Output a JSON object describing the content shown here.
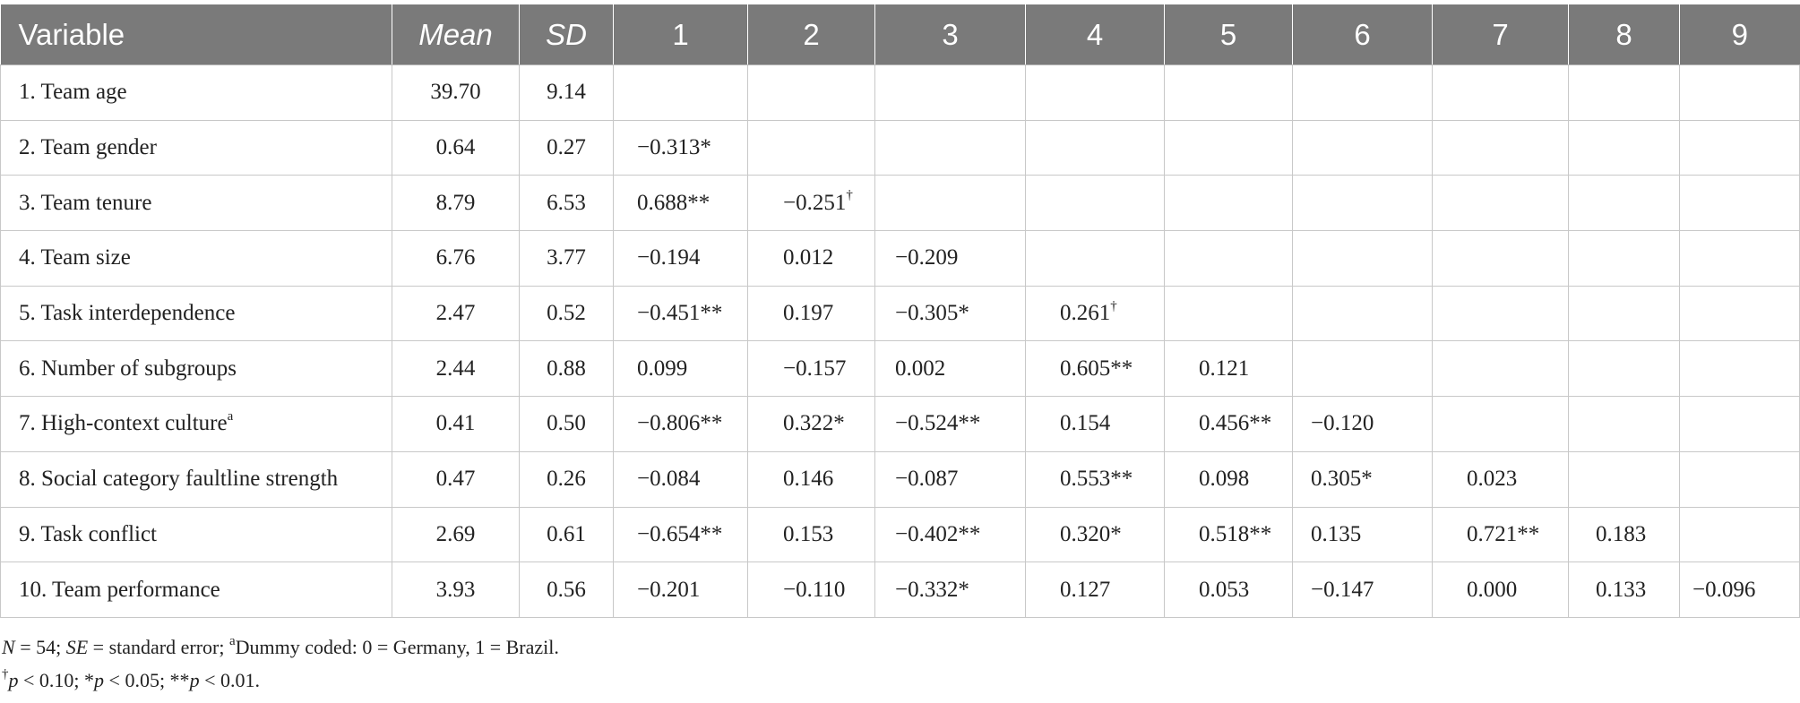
{
  "table": {
    "headers": [
      "Variable",
      "Mean",
      "SD",
      "1",
      "2",
      "3",
      "4",
      "5",
      "6",
      "7",
      "8",
      "9"
    ],
    "rows": [
      {
        "label": "1. Team age",
        "label_sup": "",
        "mean": "39.70",
        "sd": "9.14",
        "cells": []
      },
      {
        "label": "2. Team gender",
        "label_sup": "",
        "mean": "0.64",
        "sd": "0.27",
        "cells": [
          [
            "−0.313*",
            ""
          ]
        ]
      },
      {
        "label": "3. Team tenure",
        "label_sup": "",
        "mean": "8.79",
        "sd": "6.53",
        "cells": [
          [
            "0.688**",
            ""
          ],
          [
            "−0.251",
            "†"
          ]
        ]
      },
      {
        "label": "4. Team size",
        "label_sup": "",
        "mean": "6.76",
        "sd": "3.77",
        "cells": [
          [
            "−0.194",
            ""
          ],
          [
            "0.012",
            ""
          ],
          [
            "−0.209",
            ""
          ]
        ]
      },
      {
        "label": "5. Task interdependence",
        "label_sup": "",
        "mean": "2.47",
        "sd": "0.52",
        "cells": [
          [
            "−0.451**",
            ""
          ],
          [
            "0.197",
            ""
          ],
          [
            "−0.305*",
            ""
          ],
          [
            "0.261",
            "†"
          ]
        ]
      },
      {
        "label": "6. Number of subgroups",
        "label_sup": "",
        "mean": "2.44",
        "sd": "0.88",
        "cells": [
          [
            "0.099",
            ""
          ],
          [
            "−0.157",
            ""
          ],
          [
            "0.002",
            ""
          ],
          [
            "0.605**",
            ""
          ],
          [
            "0.121",
            ""
          ]
        ]
      },
      {
        "label": "7. High-context culture",
        "label_sup": "a",
        "mean": "0.41",
        "sd": "0.50",
        "cells": [
          [
            "−0.806**",
            ""
          ],
          [
            "0.322*",
            ""
          ],
          [
            "−0.524**",
            ""
          ],
          [
            "0.154",
            ""
          ],
          [
            "0.456**",
            ""
          ],
          [
            "−0.120",
            ""
          ]
        ]
      },
      {
        "label": "8. Social category faultline strength",
        "label_sup": "",
        "mean": "0.47",
        "sd": "0.26",
        "cells": [
          [
            "−0.084",
            ""
          ],
          [
            "0.146",
            ""
          ],
          [
            "−0.087",
            ""
          ],
          [
            "0.553**",
            ""
          ],
          [
            "0.098",
            ""
          ],
          [
            "0.305*",
            ""
          ],
          [
            "0.023",
            ""
          ]
        ]
      },
      {
        "label": "9. Task conflict",
        "label_sup": "",
        "mean": "2.69",
        "sd": "0.61",
        "cells": [
          [
            "−0.654**",
            ""
          ],
          [
            "0.153",
            ""
          ],
          [
            "−0.402**",
            ""
          ],
          [
            "0.320*",
            ""
          ],
          [
            "0.518**",
            ""
          ],
          [
            "0.135",
            ""
          ],
          [
            "0.721**",
            ""
          ],
          [
            "0.183",
            ""
          ]
        ]
      },
      {
        "label": "10. Team performance",
        "label_sup": "",
        "mean": "3.93",
        "sd": "0.56",
        "cells": [
          [
            "−0.201",
            ""
          ],
          [
            "−0.110",
            ""
          ],
          [
            "−0.332*",
            ""
          ],
          [
            "0.127",
            ""
          ],
          [
            "0.053",
            ""
          ],
          [
            "−0.147",
            ""
          ],
          [
            "0.000",
            ""
          ],
          [
            "0.133",
            ""
          ],
          [
            "−0.096",
            ""
          ]
        ]
      }
    ]
  },
  "notes": {
    "line1": {
      "n": "N",
      "n_value": " = 54; ",
      "se": "SE",
      "se_def": " = standard error; ",
      "sup": "a",
      "dummy": "Dummy coded: 0 = Germany, 1 = Brazil."
    },
    "line2": {
      "dagger": "†",
      "p1": "p",
      "t1": " < 0.10; *",
      "p2": "p",
      "t2": " < 0.05; **",
      "p3": "p",
      "t3": " < 0.01."
    }
  }
}
